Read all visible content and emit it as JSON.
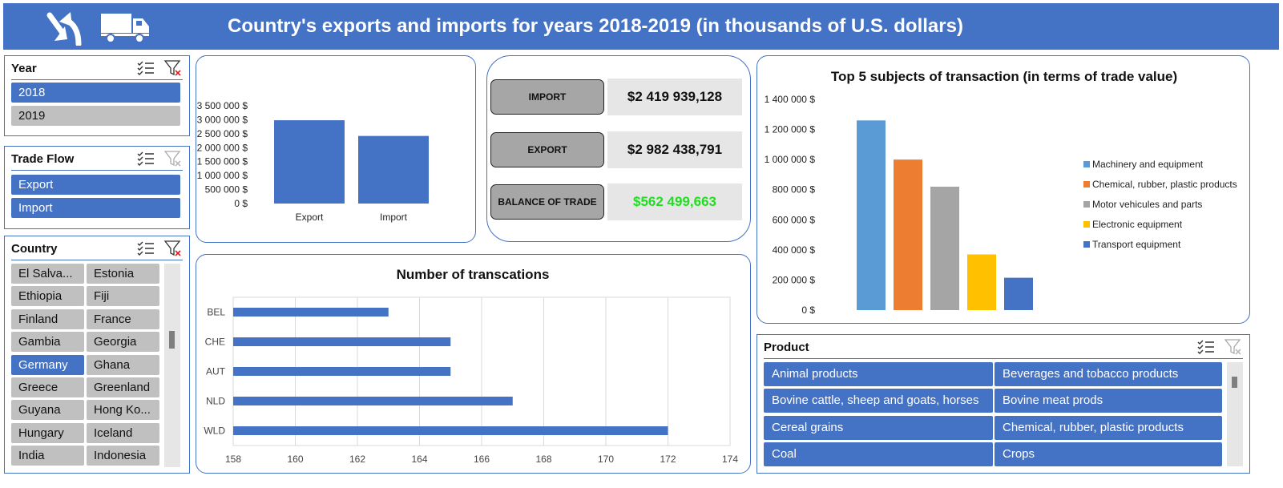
{
  "header": {
    "title": "Country's exports and imports for years 2018-2019 (in thousands of U.S. dollars)",
    "icons": [
      "exchange-arrows-icon",
      "truck-icon"
    ]
  },
  "year_slicer": {
    "title": "Year",
    "items": [
      {
        "label": "2018",
        "selected": true
      },
      {
        "label": "2019",
        "selected": false
      }
    ]
  },
  "tradeflow_slicer": {
    "title": "Trade Flow",
    "items": [
      {
        "label": "Export",
        "selected": true
      },
      {
        "label": "Import",
        "selected": true
      }
    ]
  },
  "country_slicer": {
    "title": "Country",
    "items": [
      {
        "label": "El Salva...",
        "selected": false
      },
      {
        "label": "Estonia",
        "selected": false
      },
      {
        "label": "Ethiopia",
        "selected": false
      },
      {
        "label": "Fiji",
        "selected": false
      },
      {
        "label": "Finland",
        "selected": false
      },
      {
        "label": "France",
        "selected": false
      },
      {
        "label": "Gambia",
        "selected": false
      },
      {
        "label": "Georgia",
        "selected": false
      },
      {
        "label": "Germany",
        "selected": true
      },
      {
        "label": "Ghana",
        "selected": false
      },
      {
        "label": "Greece",
        "selected": false
      },
      {
        "label": "Greenland",
        "selected": false
      },
      {
        "label": "Guyana",
        "selected": false
      },
      {
        "label": "Hong Ko...",
        "selected": false
      },
      {
        "label": "Hungary",
        "selected": false
      },
      {
        "label": "Iceland",
        "selected": false
      },
      {
        "label": "India",
        "selected": false
      },
      {
        "label": "Indonesia",
        "selected": false
      }
    ]
  },
  "kpis": [
    {
      "label": "IMPORT",
      "value": "$2 419 939,128",
      "color": "#111111"
    },
    {
      "label": "EXPORT",
      "value": "$2 982 438,791",
      "color": "#111111"
    },
    {
      "label": "BALANCE OF TRADE",
      "value": "$562 499,663",
      "color": "#22DD22"
    }
  ],
  "product_slicer": {
    "title": "Product",
    "items": [
      {
        "label": "Animal products"
      },
      {
        "label": "Beverages and tobacco products"
      },
      {
        "label": "Bovine cattle, sheep and goats, horses"
      },
      {
        "label": "Bovine meat prods"
      },
      {
        "label": "Cereal grains"
      },
      {
        "label": "Chemical, rubber, plastic products"
      },
      {
        "label": "Coal"
      },
      {
        "label": "Crops"
      }
    ]
  },
  "chart_data": [
    {
      "type": "bar",
      "title": "",
      "categories": [
        "Export",
        "Import"
      ],
      "values": [
        2982438.791,
        2419939.128
      ],
      "color": "#4472C4",
      "ylim": [
        0,
        3500000
      ],
      "yticks": [
        "0 $",
        "500 000 $",
        "1 000 000 $",
        "1 500 000 $",
        "2 000 000 $",
        "2 500 000 $",
        "3 000 000 $",
        "3 500 000 $"
      ],
      "grid": false,
      "legend": "none"
    },
    {
      "type": "bar",
      "orientation": "horizontal",
      "title": "Number of transcations",
      "categories": [
        "BEL",
        "CHE",
        "AUT",
        "NLD",
        "WLD"
      ],
      "values": [
        163,
        165,
        165,
        167,
        172
      ],
      "color": "#4472C4",
      "xlim": [
        158,
        174
      ],
      "xticks": [
        "158",
        "160",
        "162",
        "164",
        "166",
        "168",
        "170",
        "172",
        "174"
      ],
      "grid": true,
      "legend": "none"
    },
    {
      "type": "bar",
      "title": "Top 5 subjects of transaction (in terms of trade value)",
      "categories": [
        "Machinery and equipment",
        "Chemical, rubber, plastic products",
        "Motor vehicules and parts",
        "Electronic equipment",
        "Transport equipment"
      ],
      "values": [
        1260000,
        1000000,
        820000,
        370000,
        215000
      ],
      "colors": [
        "#5B9BD5",
        "#ED7D31",
        "#A5A5A5",
        "#FFC000",
        "#4472C4"
      ],
      "ylim": [
        0,
        1400000
      ],
      "yticks": [
        "0 $",
        "200 000 $",
        "400 000 $",
        "600 000 $",
        "800 000 $",
        "1 000 000 $",
        "1 200 000 $",
        "1 400 000 $"
      ],
      "grid": false,
      "legend": "right"
    }
  ]
}
